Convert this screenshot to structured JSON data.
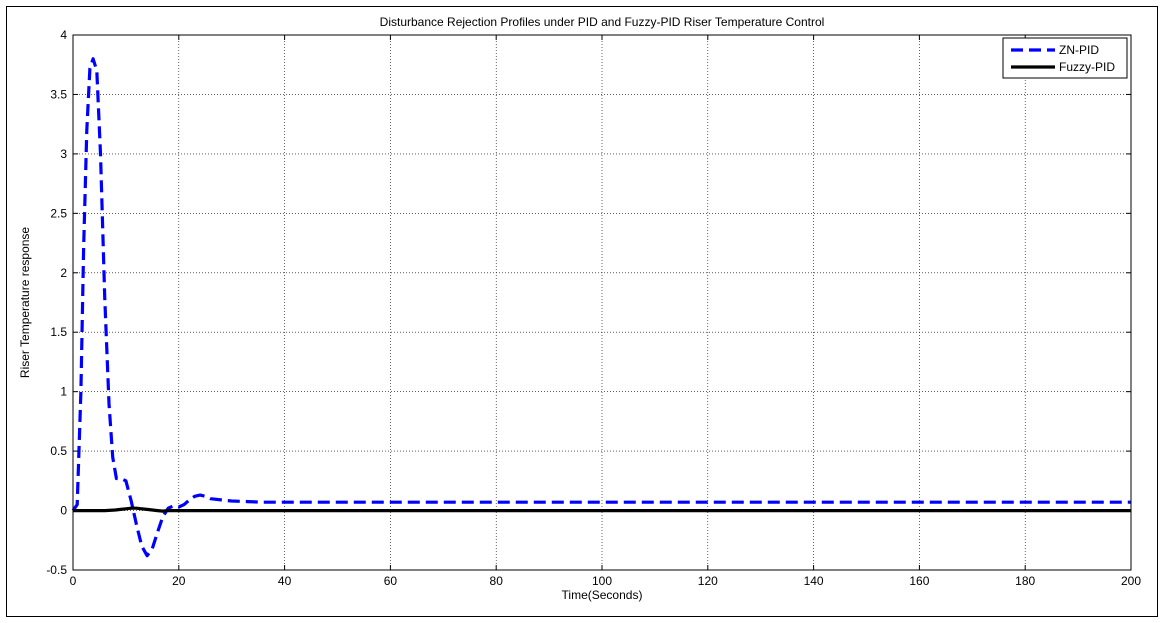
{
  "chart_data": {
    "type": "line",
    "title": "Disturbance Rejection  Profiles under PID and Fuzzy-PID Riser Temperature Control",
    "xlabel": "Time(Seconds)",
    "ylabel": "Riser Temperature response",
    "xlim": [
      0,
      200
    ],
    "ylim": [
      -0.5,
      4
    ],
    "xticks": [
      0,
      20,
      40,
      60,
      80,
      100,
      120,
      140,
      160,
      180,
      200
    ],
    "yticks": [
      -0.5,
      0,
      0.5,
      1,
      1.5,
      2,
      2.5,
      3,
      3.5,
      4
    ],
    "xtick_labels": [
      "0",
      "20",
      "40",
      "60",
      "80",
      "100",
      "120",
      "140",
      "160",
      "180",
      "200"
    ],
    "ytick_labels": [
      "-0.5",
      "0",
      "0.5",
      "1",
      "1.5",
      "2",
      "2.5",
      "3",
      "3.5",
      "4"
    ],
    "grid": true,
    "legend_position": "top-right",
    "series": [
      {
        "name": "ZN-PID",
        "color": "#0000ff",
        "style": "dashed",
        "x": [
          0,
          0.8,
          1.5,
          2,
          2.6,
          3.2,
          3.8,
          4.5,
          5.2,
          6,
          6.8,
          7.5,
          8.2,
          9,
          10,
          11,
          12,
          13,
          14,
          15,
          16,
          17,
          18,
          19,
          20,
          21,
          22,
          23,
          24,
          25,
          26,
          28,
          30,
          33,
          36,
          40,
          50,
          70,
          100,
          150,
          200
        ],
        "y": [
          0,
          0.05,
          1.0,
          2.2,
          3.2,
          3.72,
          3.8,
          3.7,
          3.0,
          1.8,
          0.9,
          0.45,
          0.27,
          0.27,
          0.25,
          0.08,
          -0.12,
          -0.3,
          -0.38,
          -0.32,
          -0.18,
          -0.05,
          0.02,
          0.04,
          0.03,
          0.05,
          0.09,
          0.12,
          0.13,
          0.12,
          0.1,
          0.09,
          0.08,
          0.075,
          0.07,
          0.07,
          0.07,
          0.07,
          0.07,
          0.07,
          0.07
        ]
      },
      {
        "name": "Fuzzy-PID",
        "color": "#000000",
        "style": "solid",
        "x": [
          0,
          2,
          4,
          6,
          8,
          9,
          10,
          11,
          12,
          13,
          14,
          15,
          16,
          17,
          18,
          20,
          25,
          30,
          40,
          60,
          100,
          150,
          200
        ],
        "y": [
          0,
          0,
          0,
          0,
          0.005,
          0.01,
          0.015,
          0.02,
          0.02,
          0.015,
          0.01,
          0.005,
          0,
          -0.005,
          0,
          0,
          0,
          0,
          0,
          0,
          0,
          0,
          0
        ]
      }
    ]
  }
}
